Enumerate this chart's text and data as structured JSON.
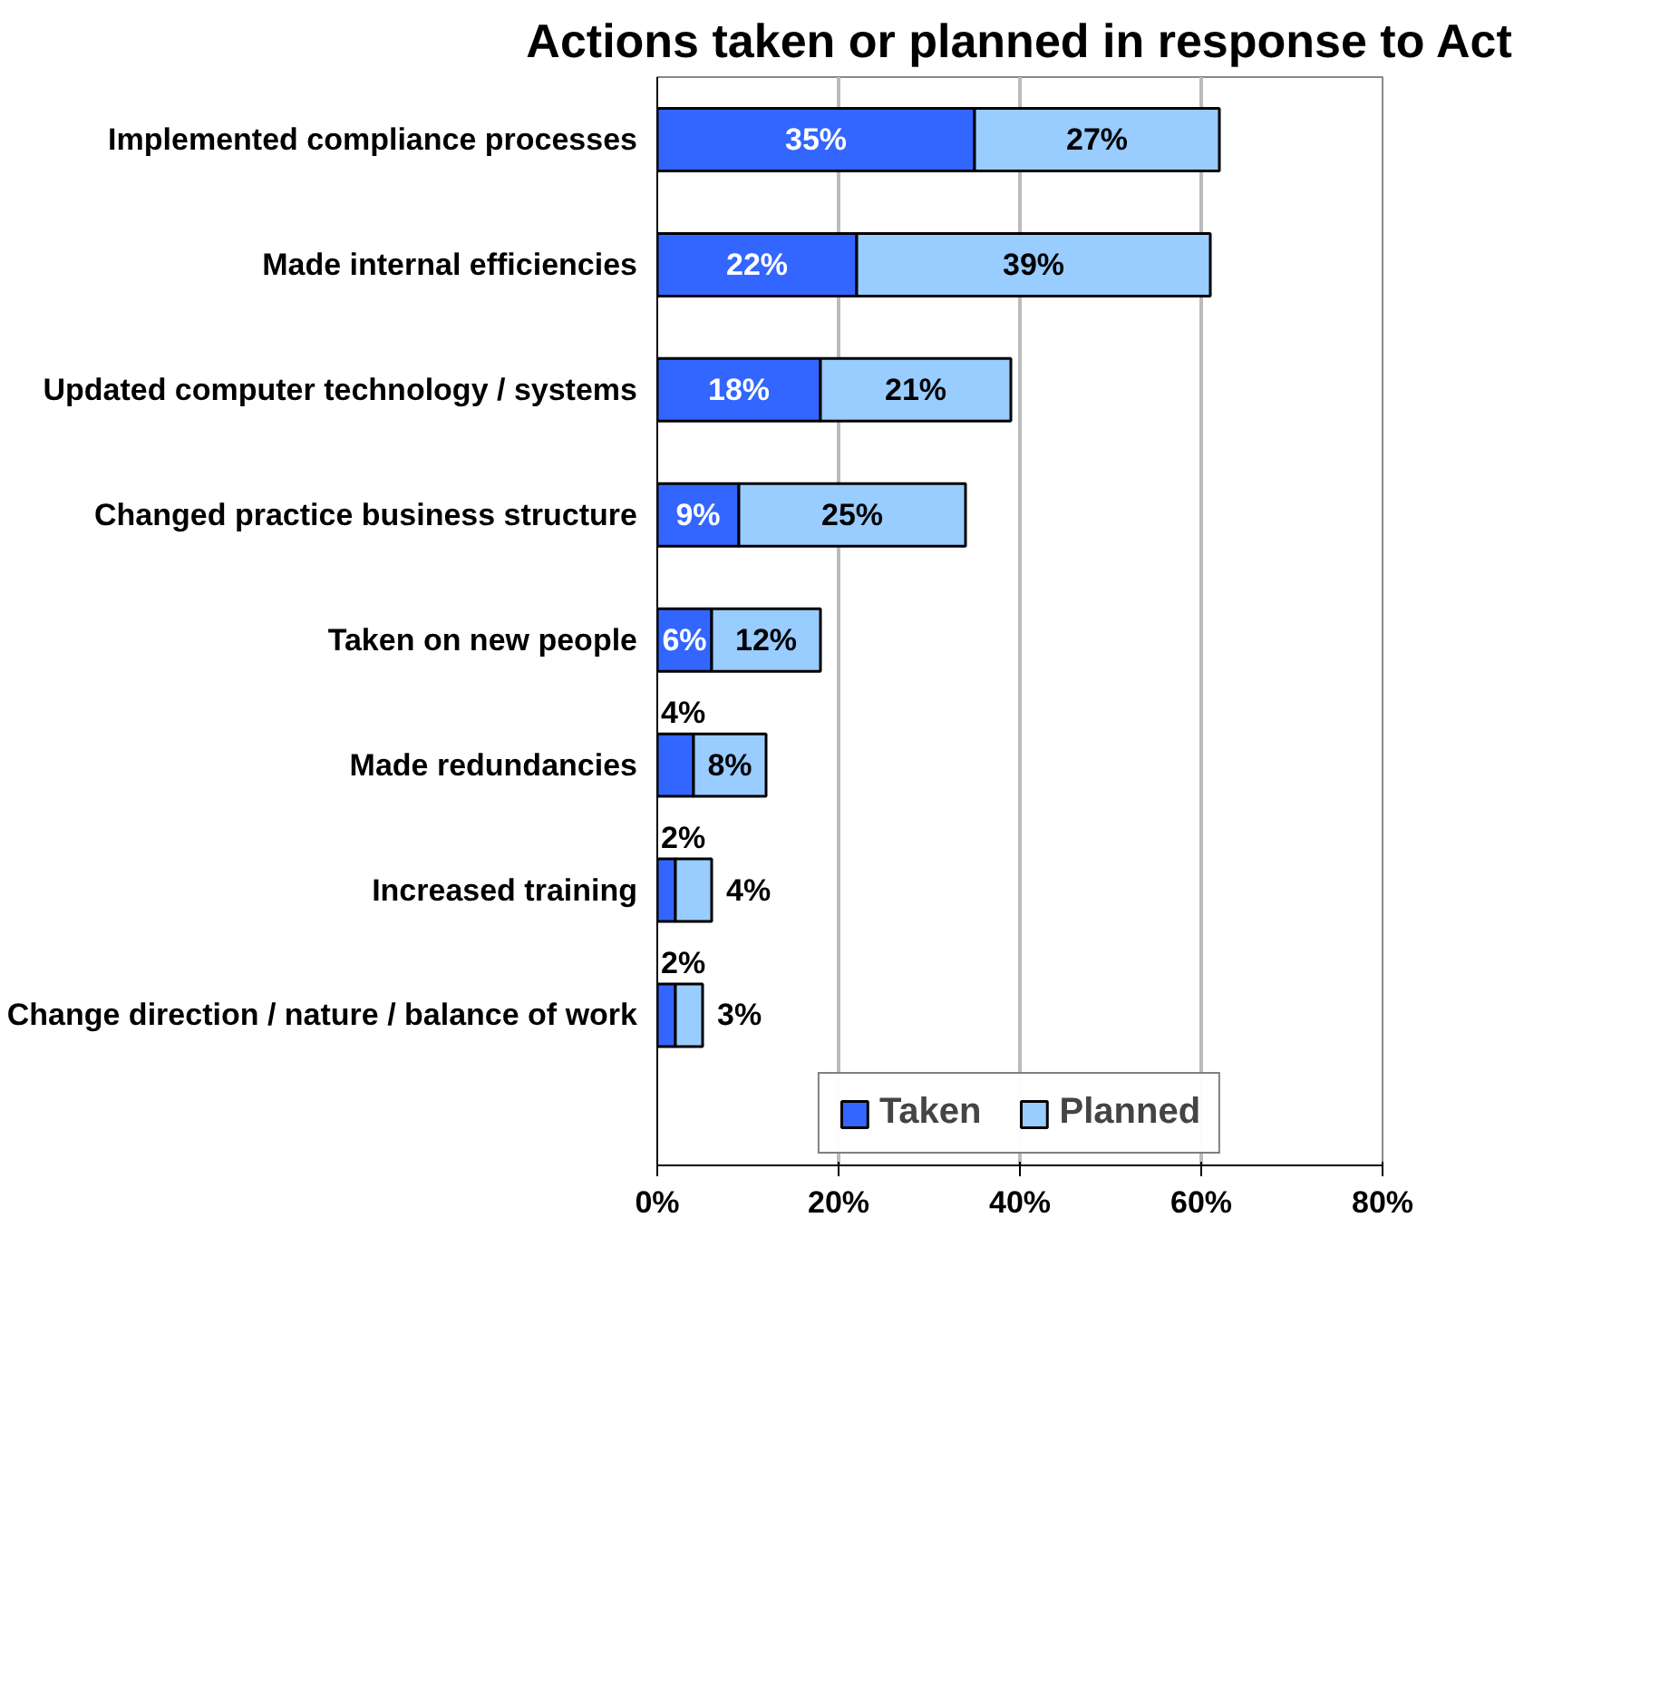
{
  "chart_data": {
    "type": "bar",
    "orientation": "horizontal",
    "stacked": true,
    "title": "Actions taken or planned in response to Act",
    "categories": [
      "Implemented compliance processes",
      "Made internal efficiencies",
      "Updated computer technology / systems",
      "Changed practice business structure",
      "Taken on new people",
      "Made redundancies",
      "Increased training",
      "Change direction / nature / balance of work"
    ],
    "series": [
      {
        "name": "Taken",
        "color": "#3366ff",
        "values": [
          35,
          22,
          18,
          9,
          6,
          4,
          2,
          2
        ],
        "value_labels": [
          "35%",
          "22%",
          "18%",
          "9%",
          "6%",
          "4%",
          "2%",
          "2%"
        ]
      },
      {
        "name": "Planned",
        "color": "#99ccff",
        "values": [
          27,
          39,
          21,
          25,
          12,
          8,
          4,
          3
        ],
        "value_labels": [
          "27%",
          "39%",
          "21%",
          "25%",
          "12%",
          "8%",
          "4%",
          "3%"
        ]
      }
    ],
    "xlim": [
      0,
      80
    ],
    "xticks": [
      {
        "value": 0,
        "label": "0%"
      },
      {
        "value": 20,
        "label": "20%"
      },
      {
        "value": 40,
        "label": "40%"
      },
      {
        "value": 60,
        "label": "60%"
      },
      {
        "value": 80,
        "label": "80%"
      }
    ],
    "grid": "x",
    "legend": "bottom"
  }
}
